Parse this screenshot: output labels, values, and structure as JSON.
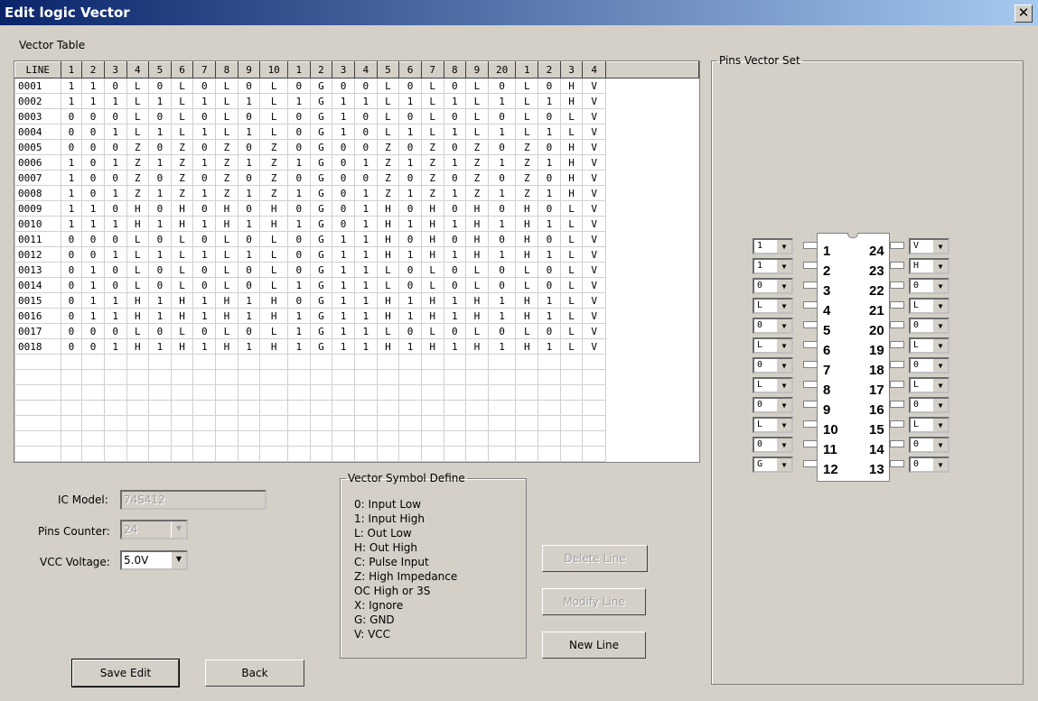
{
  "window": {
    "title": "Edit logic Vector",
    "close": "✕"
  },
  "vector_table": {
    "label": "Vector Table",
    "headers": [
      "LINE",
      "1",
      "2",
      "3",
      "4",
      "5",
      "6",
      "7",
      "8",
      "9",
      "10",
      "1",
      "2",
      "3",
      "4",
      "5",
      "6",
      "7",
      "8",
      "9",
      "20",
      "1",
      "2",
      "3",
      "4"
    ],
    "rows": [
      [
        "0001",
        "110L0L0L0L0G00L0L0L0L0HV"
      ],
      [
        "0002",
        "111L1L1L1L1G11L1L1L1L1HV"
      ],
      [
        "0003",
        "000L0L0L0L0G10L0L0L0L0LV"
      ],
      [
        "0004",
        "001L1L1L1L0G10L1L1L1L1LV"
      ],
      [
        "0005",
        "000Z0Z0Z0Z0G00Z0Z0Z0Z0HV"
      ],
      [
        "0006",
        "101Z1Z1Z1Z1G01Z1Z1Z1Z1HV"
      ],
      [
        "0007",
        "100Z0Z0Z0Z0G00Z0Z0Z0Z0HV"
      ],
      [
        "0008",
        "101Z1Z1Z1Z1G01Z1Z1Z1Z1HV"
      ],
      [
        "0009",
        "110H0H0H0H0G01H0H0H0H0LV"
      ],
      [
        "0010",
        "111H1H1H1H1G01H1H1H1H1LV"
      ],
      [
        "0011",
        "000L0L0L0L0G11H0H0H0H0LV"
      ],
      [
        "0012",
        "001L1L1L1L0G11H1H1H1H1LV"
      ],
      [
        "0013",
        "010L0L0L0L0G11L0L0L0L0LV"
      ],
      [
        "0014",
        "010L0L0L0L1G11L0L0L0L0LV"
      ],
      [
        "0015",
        "011H1H1H1H0G11H1H1H1H1LV"
      ],
      [
        "0016",
        "011H1H1H1H1G11H1H1H1H1LV"
      ],
      [
        "0017",
        "000L0L0L0L1G11L0L0L0L0LV"
      ],
      [
        "0018",
        "001H1H1H1H1G11H1H1H1H1LV"
      ]
    ]
  },
  "form": {
    "ic_model_label": "IC Model:",
    "ic_model_value": "74S412",
    "pins_label": "Pins Counter:",
    "pins_value": "24",
    "vcc_label": "VCC Voltage:",
    "vcc_value": "5.0V"
  },
  "symbols": {
    "title": "Vector Symbol Define",
    "items": [
      "0: Input Low",
      "1: Input High",
      "L: Out Low",
      "H: Out High",
      "C: Pulse Input",
      "Z: High Impedance",
      " OC High or 3S",
      "X: Ignore",
      "G: GND",
      "V: VCC"
    ]
  },
  "buttons": {
    "delete": "Delete Line",
    "modify": "Modify Line",
    "new": "New Line",
    "save": "Save Edit",
    "back": "Back"
  },
  "pins_panel": {
    "title": "Pins Vector Set",
    "left": [
      {
        "pin": "1",
        "value": "1"
      },
      {
        "pin": "2",
        "value": "1"
      },
      {
        "pin": "3",
        "value": "0"
      },
      {
        "pin": "4",
        "value": "L"
      },
      {
        "pin": "5",
        "value": "0"
      },
      {
        "pin": "6",
        "value": "L"
      },
      {
        "pin": "7",
        "value": "0"
      },
      {
        "pin": "8",
        "value": "L"
      },
      {
        "pin": "9",
        "value": "0"
      },
      {
        "pin": "10",
        "value": "L"
      },
      {
        "pin": "11",
        "value": "0"
      },
      {
        "pin": "12",
        "value": "G"
      }
    ],
    "right": [
      {
        "pin": "24",
        "value": "V"
      },
      {
        "pin": "23",
        "value": "H"
      },
      {
        "pin": "22",
        "value": "0"
      },
      {
        "pin": "21",
        "value": "L"
      },
      {
        "pin": "20",
        "value": "0"
      },
      {
        "pin": "19",
        "value": "L"
      },
      {
        "pin": "18",
        "value": "0"
      },
      {
        "pin": "17",
        "value": "L"
      },
      {
        "pin": "16",
        "value": "0"
      },
      {
        "pin": "15",
        "value": "L"
      },
      {
        "pin": "14",
        "value": "0"
      },
      {
        "pin": "13",
        "value": "0"
      }
    ]
  }
}
